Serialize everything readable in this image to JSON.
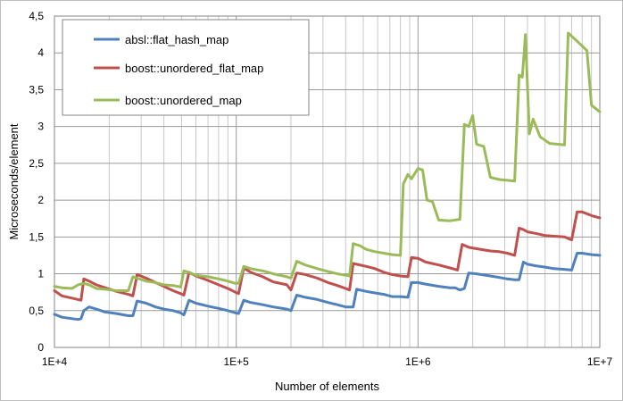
{
  "chart_data": {
    "type": "line",
    "title": "",
    "xlabel": "Number of elements",
    "ylabel": "Microseconds/element",
    "x_scale": "log",
    "xlim": [
      10000,
      10000000
    ],
    "ylim": [
      0,
      4.5
    ],
    "x_ticks": [
      10000,
      100000,
      1000000,
      10000000
    ],
    "x_tick_labels": [
      "1E+4",
      "1E+5",
      "1E+6",
      "1E+7"
    ],
    "y_ticks": [
      0,
      0.5,
      1,
      1.5,
      2,
      2.5,
      3,
      3.5,
      4,
      4.5
    ],
    "y_tick_labels": [
      "0",
      "0,5",
      "1",
      "1,5",
      "2",
      "2,5",
      "3",
      "3,5",
      "4",
      "4,5"
    ],
    "grid": true,
    "legend_position": "top-left",
    "series": [
      {
        "name": "absl::flat_hash_map",
        "color": "#4f81bd",
        "x": [
          10000,
          11000,
          12500,
          13500,
          14000,
          14500,
          15500,
          17000,
          19000,
          22000,
          25500,
          27000,
          28500,
          32000,
          36000,
          40000,
          45000,
          49500,
          51500,
          55000,
          60000,
          70000,
          80000,
          90000,
          99000,
          103000,
          110000,
          120000,
          140000,
          160000,
          190000,
          200000,
          215000,
          240000,
          280000,
          320000,
          360000,
          400000,
          440000,
          460000,
          520000,
          580000,
          650000,
          720000,
          800000,
          880000,
          920000,
          1000000,
          1100000,
          1300000,
          1500000,
          1600000,
          1700000,
          1800000,
          1900000,
          2100000,
          2500000,
          2800000,
          3100000,
          3400000,
          3600000,
          3800000,
          4000000,
          4400000,
          5000000,
          5600000,
          6400000,
          7000000,
          7500000,
          8000000,
          9000000,
          10000000
        ],
        "y": [
          0.45,
          0.41,
          0.39,
          0.38,
          0.39,
          0.5,
          0.55,
          0.52,
          0.48,
          0.46,
          0.43,
          0.43,
          0.63,
          0.6,
          0.55,
          0.52,
          0.5,
          0.47,
          0.44,
          0.64,
          0.6,
          0.56,
          0.53,
          0.5,
          0.47,
          0.46,
          0.64,
          0.61,
          0.58,
          0.55,
          0.52,
          0.5,
          0.71,
          0.68,
          0.65,
          0.61,
          0.58,
          0.55,
          0.55,
          0.79,
          0.76,
          0.74,
          0.72,
          0.69,
          0.69,
          0.68,
          0.88,
          0.88,
          0.86,
          0.83,
          0.81,
          0.81,
          0.78,
          0.8,
          1.01,
          1.0,
          0.97,
          0.95,
          0.93,
          0.92,
          0.92,
          1.16,
          1.13,
          1.11,
          1.09,
          1.07,
          1.06,
          1.05,
          1.28,
          1.28,
          1.26,
          1.25
        ]
      },
      {
        "name": "boost::unordered_flat_map",
        "color": "#c0504d",
        "x": [
          10000,
          11000,
          12500,
          13500,
          14000,
          14500,
          15500,
          17000,
          19000,
          22000,
          25500,
          27000,
          28500,
          32000,
          36000,
          40000,
          45000,
          49500,
          51500,
          55000,
          60000,
          70000,
          80000,
          90000,
          99000,
          103000,
          110000,
          120000,
          140000,
          160000,
          190000,
          200000,
          215000,
          240000,
          280000,
          320000,
          360000,
          400000,
          420000,
          440000,
          520000,
          580000,
          650000,
          720000,
          800000,
          880000,
          920000,
          1000000,
          1100000,
          1300000,
          1500000,
          1650000,
          1750000,
          1900000,
          2100000,
          2500000,
          2800000,
          3100000,
          3400000,
          3600000,
          3800000,
          4000000,
          4400000,
          5000000,
          5600000,
          6400000,
          7000000,
          7500000,
          8000000,
          9000000,
          10000000
        ],
        "y": [
          0.77,
          0.7,
          0.67,
          0.65,
          0.64,
          0.93,
          0.9,
          0.85,
          0.81,
          0.76,
          0.72,
          0.7,
          0.99,
          0.94,
          0.88,
          0.83,
          0.77,
          0.73,
          0.71,
          1.02,
          0.97,
          0.91,
          0.85,
          0.8,
          0.75,
          0.73,
          1.08,
          1.02,
          0.96,
          0.89,
          0.85,
          0.78,
          1.01,
          0.99,
          0.94,
          0.88,
          0.84,
          0.8,
          0.78,
          1.14,
          1.1,
          1.07,
          1.02,
          0.99,
          0.97,
          0.96,
          1.22,
          1.21,
          1.16,
          1.12,
          1.08,
          1.05,
          1.4,
          1.36,
          1.34,
          1.31,
          1.3,
          1.28,
          1.25,
          1.62,
          1.6,
          1.57,
          1.55,
          1.52,
          1.51,
          1.5,
          1.46,
          1.84,
          1.84,
          1.79,
          1.76
        ]
      },
      {
        "name": "boost::unordered_map",
        "color": "#9bbb59",
        "x": [
          10000,
          11000,
          12500,
          13500,
          14000,
          14500,
          15500,
          17000,
          19000,
          22000,
          25500,
          27000,
          28500,
          32000,
          36000,
          40000,
          45000,
          49500,
          51500,
          55000,
          60000,
          70000,
          80000,
          90000,
          99000,
          103000,
          110000,
          120000,
          140000,
          160000,
          190000,
          200000,
          215000,
          240000,
          280000,
          320000,
          360000,
          400000,
          420000,
          440000,
          480000,
          520000,
          580000,
          650000,
          720000,
          800000,
          830000,
          880000,
          920000,
          1000000,
          1060000,
          1120000,
          1200000,
          1300000,
          1500000,
          1700000,
          1800000,
          1900000,
          2000000,
          2100000,
          2300000,
          2500000,
          2800000,
          3100000,
          3400000,
          3600000,
          3750000,
          3900000,
          4100000,
          4300000,
          4700000,
          5300000,
          5900000,
          6400000,
          6700000,
          7200000,
          7800000,
          8500000,
          9000000,
          10000000
        ],
        "y": [
          0.83,
          0.81,
          0.8,
          0.85,
          0.86,
          0.87,
          0.85,
          0.8,
          0.79,
          0.77,
          0.77,
          0.96,
          0.94,
          0.9,
          0.88,
          0.85,
          0.84,
          0.82,
          1.04,
          1.02,
          0.98,
          0.96,
          0.93,
          0.9,
          0.87,
          0.87,
          1.1,
          1.07,
          1.04,
          1.0,
          0.96,
          0.94,
          1.17,
          1.12,
          1.07,
          1.03,
          1.0,
          0.98,
          0.97,
          1.41,
          1.38,
          1.33,
          1.3,
          1.28,
          1.26,
          1.25,
          2.22,
          2.35,
          2.29,
          2.43,
          2.41,
          2.0,
          1.98,
          1.73,
          1.72,
          1.74,
          3.03,
          3.0,
          3.15,
          2.76,
          2.73,
          2.31,
          2.28,
          2.27,
          2.26,
          3.7,
          3.67,
          4.25,
          2.9,
          3.1,
          2.86,
          2.77,
          2.76,
          2.75,
          4.27,
          4.2,
          4.12,
          4.03,
          3.29,
          3.2
        ]
      }
    ]
  }
}
